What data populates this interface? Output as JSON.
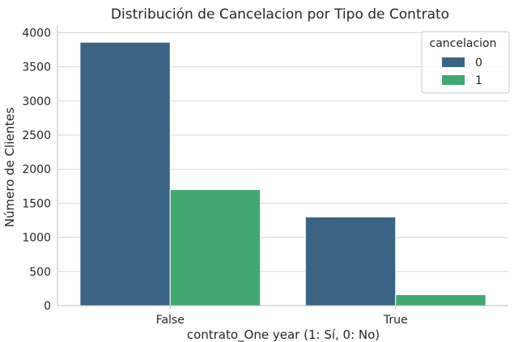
{
  "chart_data": {
    "type": "bar",
    "title": "Distribución de Cancelacion por Tipo de Contrato",
    "xlabel": "contrato_One year (1: Sí, 0: No)",
    "ylabel": "Número de Clientes",
    "categories": [
      "False",
      "True"
    ],
    "series": [
      {
        "name": "0",
        "values": [
          3860,
          1300
        ],
        "color": "#3b6484"
      },
      {
        "name": "1",
        "values": [
          1700,
          160
        ],
        "color": "#41a872"
      }
    ],
    "ylim": [
      0,
      4100
    ],
    "yticks": [
      0,
      500,
      1000,
      1500,
      2000,
      2500,
      3000,
      3500,
      4000
    ],
    "legend": {
      "title": "cancelacion",
      "placement": "top-right"
    },
    "grid": "horizontal"
  }
}
